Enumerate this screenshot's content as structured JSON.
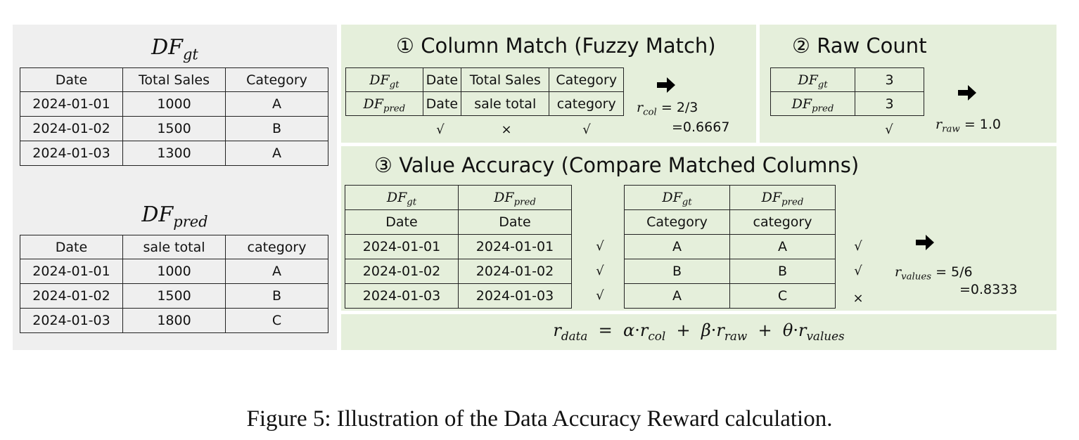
{
  "left": {
    "gt_title": {
      "base": "DF",
      "sub": "gt"
    },
    "gt_table": {
      "headers": [
        "Date",
        "Total Sales",
        "Category"
      ],
      "rows": [
        [
          "2024-01-01",
          "1000",
          "A"
        ],
        [
          "2024-01-02",
          "1500",
          "B"
        ],
        [
          "2024-01-03",
          "1300",
          "A"
        ]
      ]
    },
    "pred_title": {
      "base": "DF",
      "sub": "pred"
    },
    "pred_table": {
      "headers": [
        "Date",
        "sale total",
        "category"
      ],
      "rows": [
        [
          "2024-01-01",
          "1000",
          "A"
        ],
        [
          "2024-01-02",
          "1500",
          "B"
        ],
        [
          "2024-01-03",
          "1800",
          "C"
        ]
      ]
    }
  },
  "column_match": {
    "title": "① Column Match (Fuzzy Match)",
    "row_gt": {
      "label_base": "DF",
      "label_sub": "gt",
      "cells": [
        "Date",
        "Total Sales",
        "Category"
      ]
    },
    "row_pred": {
      "label_base": "DF",
      "label_sub": "pred",
      "cells": [
        "Date",
        "sale total",
        "category"
      ]
    },
    "marks": [
      "√",
      "×",
      "√"
    ],
    "result_var": "r",
    "result_sub": "col",
    "result_eq": "= 2/3",
    "result_val": "=0.6667"
  },
  "raw_count": {
    "title": "② Raw Count",
    "row_gt": {
      "label_base": "DF",
      "label_sub": "gt",
      "value": "3"
    },
    "row_pred": {
      "label_base": "DF",
      "label_sub": "pred",
      "value": "3"
    },
    "mark": "√",
    "result_var": "r",
    "result_sub": "raw",
    "result_eq": "= 1.0"
  },
  "value_accuracy": {
    "title": "③ Value Accuracy (Compare Matched Columns)",
    "table1": {
      "headers": [
        {
          "base": "DF",
          "sub": "gt"
        },
        {
          "base": "DF",
          "sub": "pred"
        }
      ],
      "col_names": [
        "Date",
        "Date"
      ],
      "rows": [
        [
          "2024-01-01",
          "2024-01-01"
        ],
        [
          "2024-01-02",
          "2024-01-02"
        ],
        [
          "2024-01-03",
          "2024-01-03"
        ]
      ],
      "marks": [
        "√",
        "√",
        "√"
      ]
    },
    "table2": {
      "headers": [
        {
          "base": "DF",
          "sub": "gt"
        },
        {
          "base": "DF",
          "sub": "pred"
        }
      ],
      "col_names": [
        "Category",
        "category"
      ],
      "rows": [
        [
          "A",
          "A"
        ],
        [
          "B",
          "B"
        ],
        [
          "A",
          "C"
        ]
      ],
      "marks": [
        "√",
        "√",
        "×"
      ]
    },
    "result_var": "r",
    "result_sub": "values",
    "result_eq": "= 5/6",
    "result_val": "=0.8333"
  },
  "formula": {
    "lhs_var": "r",
    "lhs_sub": "data",
    "eq": "=",
    "t1_coef": "α",
    "t1_var": "r",
    "t1_sub": "col",
    "t2_coef": "β",
    "t2_var": "r",
    "t2_sub": "raw",
    "t3_coef": "θ",
    "t3_var": "r",
    "t3_sub": "values",
    "dot": "·",
    "plus": "+"
  },
  "caption": "Figure 5: Illustration of the Data Accuracy Reward calculation.",
  "colors": {
    "left_panel": "#efefef",
    "green_panel": "#e5efdb",
    "border": "#222222"
  },
  "icons": [
    "right-arrow-icon"
  ]
}
